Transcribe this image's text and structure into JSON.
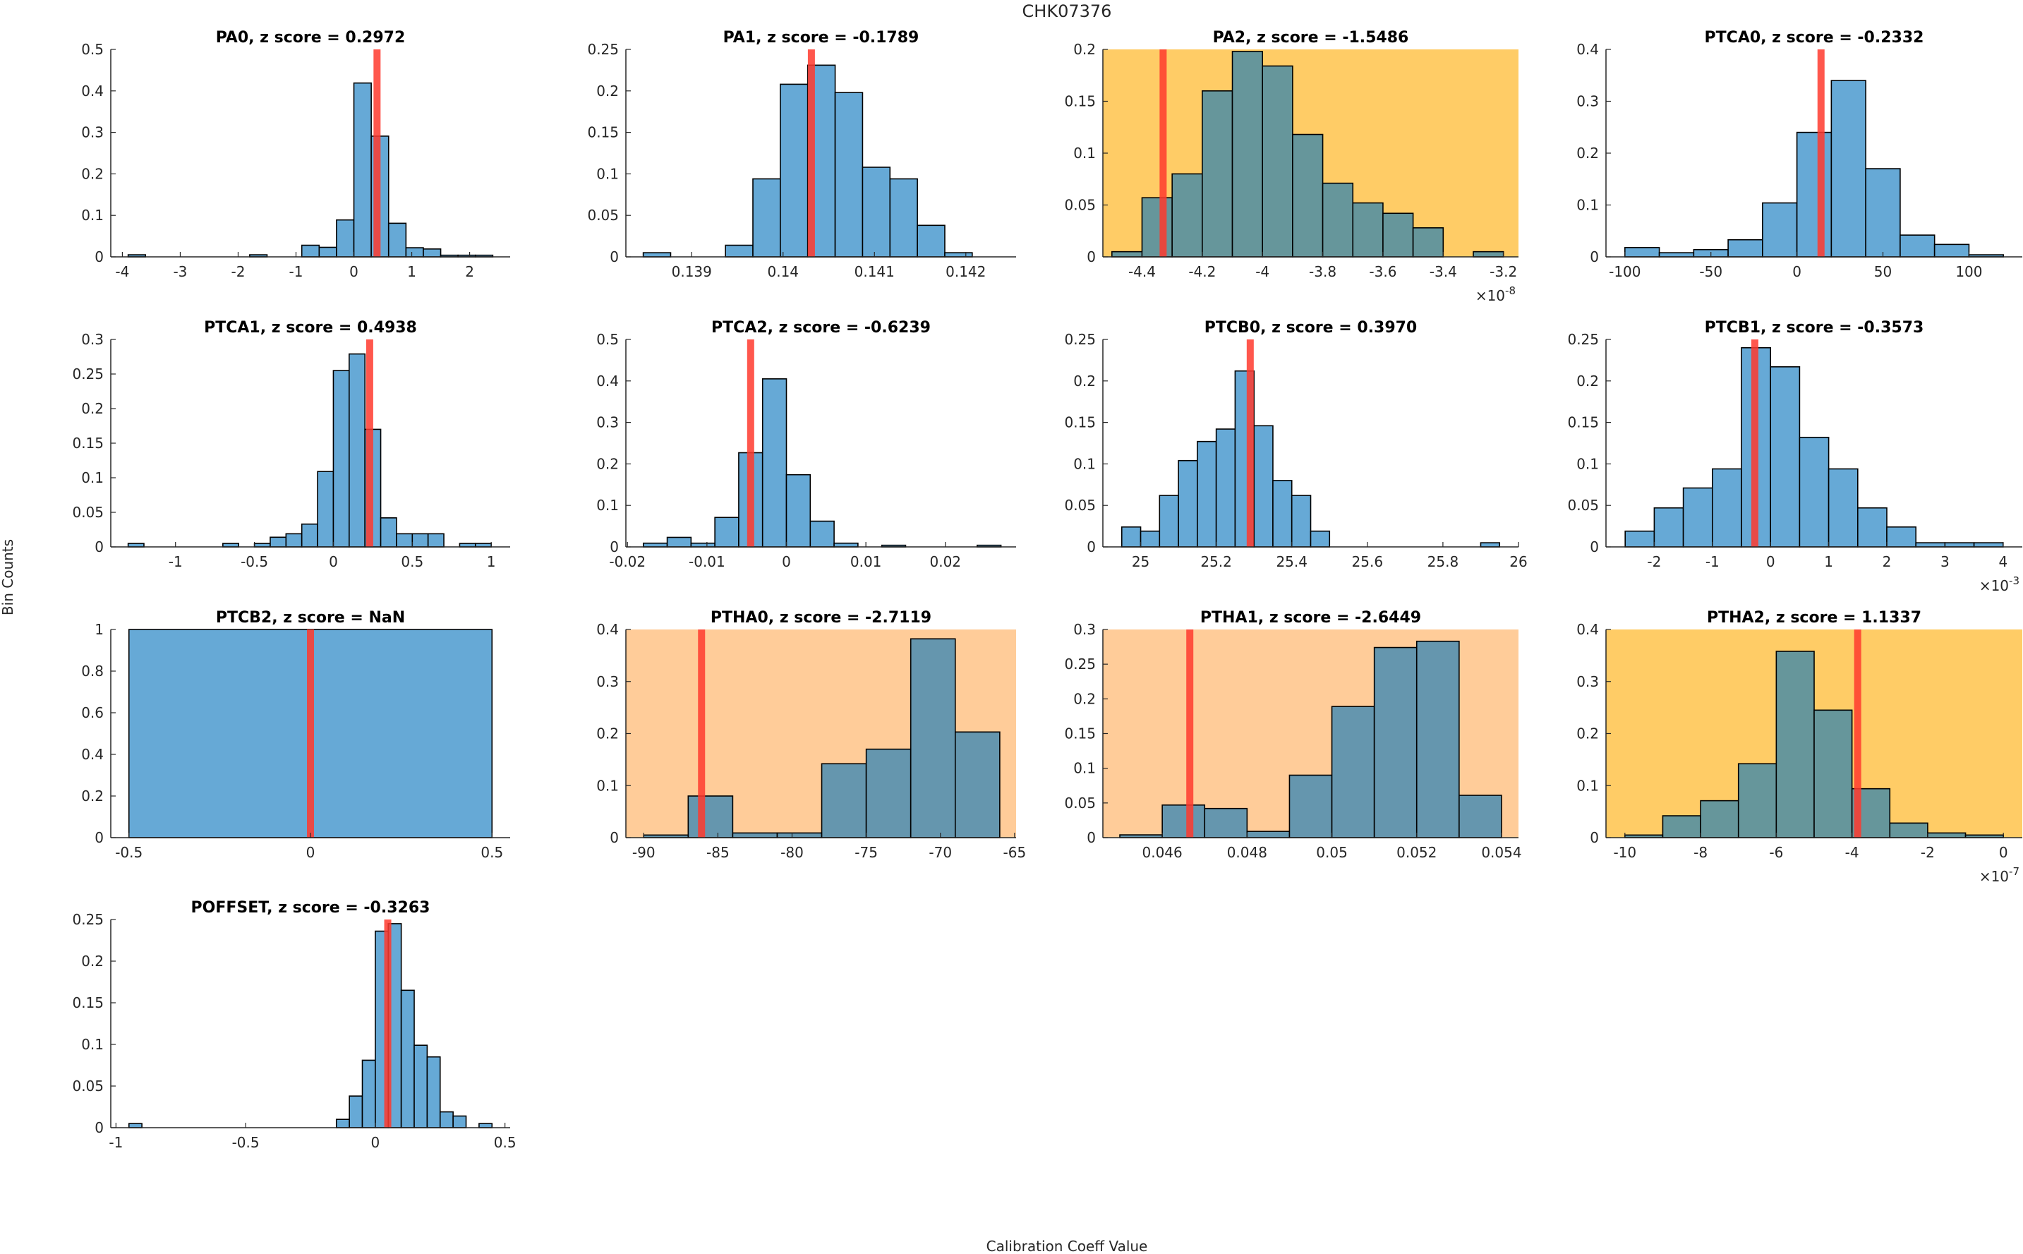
{
  "figure": {
    "suptitle": "CHK07376",
    "xlabel": "Calibration Coeff Value",
    "ylabel": "Bin Counts"
  },
  "colors": {
    "bar_default": "#66a9d6",
    "bar_on_highlight": "#66969b",
    "bar_on_orange": "#6596ae",
    "bar_edge": "#000000",
    "marker": "#ff3a2e",
    "bg_yellow": "#ffcc66",
    "bg_orange": "#ffcc99",
    "axis": "#262626"
  },
  "chart_data": [
    {
      "type": "bar",
      "name": "PA0",
      "title": "PA0, z score = 0.2972",
      "z_score": 0.2972,
      "background": "none",
      "xlim": [
        -4.2,
        2.7
      ],
      "ylim": [
        0,
        0.5
      ],
      "xticks": [
        -4,
        -3,
        -2,
        -1,
        0,
        1,
        2
      ],
      "xtick_labels": [
        "-4",
        "-3",
        "-2",
        "-1",
        "0",
        "1",
        "2"
      ],
      "yticks": [
        0,
        0.1,
        0.2,
        0.3,
        0.4,
        0.5
      ],
      "ytick_labels": [
        "0",
        "0.1",
        "0.2",
        "0.3",
        "0.4",
        "0.5"
      ],
      "x_multiplier": "",
      "bin_edges": [
        -3.9,
        -3.6,
        -3.3,
        -3.0,
        -2.7,
        -2.4,
        -2.1,
        -1.8,
        -1.5,
        -1.2,
        -0.9,
        -0.6,
        -0.3,
        0.0,
        0.3,
        0.6,
        0.9,
        1.2,
        1.5,
        1.8,
        2.1,
        2.4
      ],
      "values": [
        0.005,
        0,
        0,
        0,
        0,
        0,
        0,
        0.005,
        0,
        0,
        0.028,
        0.023,
        0.089,
        0.419,
        0.291,
        0.081,
        0.022,
        0.019,
        0.004,
        0.004,
        0.004
      ],
      "marker_x": 0.4
    },
    {
      "type": "bar",
      "name": "PA1",
      "title": "PA1, z score = -0.1789",
      "z_score": -0.1789,
      "background": "none",
      "xlim": [
        0.13828,
        0.14255
      ],
      "ylim": [
        0,
        0.25
      ],
      "xticks": [
        0.139,
        0.14,
        0.141,
        0.142
      ],
      "xtick_labels": [
        "0.139",
        "0.14",
        "0.141",
        "0.142"
      ],
      "yticks": [
        0,
        0.05,
        0.1,
        0.15,
        0.2,
        0.25
      ],
      "ytick_labels": [
        "0",
        "0.05",
        "0.1",
        "0.15",
        "0.2",
        "0.25"
      ],
      "x_multiplier": "",
      "bin_edges": [
        0.13847,
        0.13877,
        0.13907,
        0.13937,
        0.13967,
        0.13997,
        0.14027,
        0.14057,
        0.14087,
        0.14117,
        0.14147,
        0.14177,
        0.14207
      ],
      "values": [
        0.005,
        0,
        0,
        0.014,
        0.094,
        0.208,
        0.231,
        0.198,
        0.108,
        0.094,
        0.038,
        0.005
      ],
      "marker_x": 0.14031
    },
    {
      "type": "bar",
      "name": "PA2",
      "title": "PA2, z score = -1.5486",
      "z_score": -1.5486,
      "background": "yellow",
      "xlim": [
        -4.53,
        -3.15
      ],
      "ylim": [
        0,
        0.2
      ],
      "xticks": [
        -4.4,
        -4.2,
        -4.0,
        -3.8,
        -3.6,
        -3.4,
        -3.2
      ],
      "xtick_labels": [
        "-4.4",
        "-4.2",
        "-4",
        "-3.8",
        "-3.6",
        "-3.4",
        "-3.2"
      ],
      "yticks": [
        0,
        0.05,
        0.1,
        0.15,
        0.2
      ],
      "ytick_labels": [
        "0",
        "0.05",
        "0.1",
        "0.15",
        "0.2"
      ],
      "x_multiplier": "×10",
      "x_multiplier_exp": "-8",
      "bin_edges": [
        -4.5,
        -4.4,
        -4.3,
        -4.2,
        -4.1,
        -4.0,
        -3.9,
        -3.8,
        -3.7,
        -3.6,
        -3.5,
        -3.4,
        -3.3,
        -3.2
      ],
      "values": [
        0.005,
        0.057,
        0.08,
        0.16,
        0.198,
        0.184,
        0.118,
        0.071,
        0.052,
        0.042,
        0.028,
        0,
        0.005
      ],
      "marker_x": -4.33
    },
    {
      "type": "bar",
      "name": "PTCA0",
      "title": "PTCA0, z score = -0.2332",
      "z_score": -0.2332,
      "background": "none",
      "xlim": [
        -111,
        131
      ],
      "ylim": [
        0,
        0.4
      ],
      "xticks": [
        -100,
        -50,
        0,
        50,
        100
      ],
      "xtick_labels": [
        "-100",
        "-50",
        "0",
        "50",
        "100"
      ],
      "yticks": [
        0,
        0.1,
        0.2,
        0.3,
        0.4
      ],
      "ytick_labels": [
        "0",
        "0.1",
        "0.2",
        "0.3",
        "0.4"
      ],
      "x_multiplier": "",
      "bin_edges": [
        -100,
        -80,
        -60,
        -40,
        -20,
        0,
        20,
        40,
        60,
        80,
        100,
        120
      ],
      "values": [
        0.018,
        0.008,
        0.014,
        0.033,
        0.104,
        0.24,
        0.34,
        0.17,
        0.042,
        0.024,
        0.004
      ],
      "marker_x": 14
    },
    {
      "type": "bar",
      "name": "PTCA1",
      "title": "PTCA1, z score = 0.4938",
      "z_score": 0.4938,
      "background": "none",
      "xlim": [
        -1.41,
        1.12
      ],
      "ylim": [
        0,
        0.3
      ],
      "xticks": [
        -1,
        -0.5,
        0,
        0.5,
        1
      ],
      "xtick_labels": [
        "-1",
        "-0.5",
        "0",
        "0.5",
        "1"
      ],
      "yticks": [
        0,
        0.05,
        0.1,
        0.15,
        0.2,
        0.25,
        0.3
      ],
      "ytick_labels": [
        "0",
        "0.05",
        "0.1",
        "0.15",
        "0.2",
        "0.25",
        "0.3"
      ],
      "x_multiplier": "",
      "bin_edges": [
        -1.3,
        -1.2,
        -1.1,
        -1.0,
        -0.9,
        -0.8,
        -0.7,
        -0.6,
        -0.5,
        -0.4,
        -0.3,
        -0.2,
        -0.1,
        0.0,
        0.1,
        0.2,
        0.3,
        0.4,
        0.5,
        0.6,
        0.7,
        0.8,
        0.9,
        1.0
      ],
      "values": [
        0.005,
        0,
        0,
        0,
        0,
        0,
        0.005,
        0,
        0.005,
        0.014,
        0.019,
        0.033,
        0.109,
        0.255,
        0.279,
        0.17,
        0.042,
        0.019,
        0.019,
        0.019,
        0,
        0.005,
        0.005
      ],
      "marker_x": 0.23
    },
    {
      "type": "bar",
      "name": "PTCA2",
      "title": "PTCA2, z score = -0.6239",
      "z_score": -0.6239,
      "background": "none",
      "xlim": [
        -0.0202,
        0.0289
      ],
      "ylim": [
        0,
        0.5
      ],
      "xticks": [
        -0.02,
        -0.01,
        0,
        0.01,
        0.02
      ],
      "xtick_labels": [
        "-0.02",
        "-0.01",
        "0",
        "0.01",
        "0.02"
      ],
      "yticks": [
        0,
        0.1,
        0.2,
        0.3,
        0.4,
        0.5
      ],
      "ytick_labels": [
        "0",
        "0.1",
        "0.2",
        "0.3",
        "0.4",
        "0.5"
      ],
      "x_multiplier": "",
      "bin_edges": [
        -0.018,
        -0.015,
        -0.012,
        -0.009,
        -0.006,
        -0.003,
        0.0,
        0.003,
        0.006,
        0.009,
        0.012,
        0.015,
        0.018,
        0.021,
        0.024,
        0.027
      ],
      "values": [
        0.009,
        0.023,
        0.009,
        0.071,
        0.227,
        0.405,
        0.174,
        0.062,
        0.009,
        0,
        0.004,
        0,
        0,
        0,
        0.004
      ],
      "marker_x": -0.0045
    },
    {
      "type": "bar",
      "name": "PTCB0",
      "title": "PTCB0, z score = 0.3970",
      "z_score": 0.397,
      "background": "none",
      "xlim": [
        24.9,
        26.0
      ],
      "ylim": [
        0,
        0.25
      ],
      "xticks": [
        25,
        25.2,
        25.4,
        25.6,
        25.8,
        26
      ],
      "xtick_labels": [
        "25",
        "25.2",
        "25.4",
        "25.6",
        "25.8",
        "26"
      ],
      "yticks": [
        0,
        0.05,
        0.1,
        0.15,
        0.2,
        0.25
      ],
      "ytick_labels": [
        "0",
        "0.05",
        "0.1",
        "0.15",
        "0.2",
        "0.25"
      ],
      "x_multiplier": "",
      "bin_edges": [
        24.95,
        25.0,
        25.05,
        25.1,
        25.15,
        25.2,
        25.25,
        25.3,
        25.35,
        25.4,
        25.45,
        25.5,
        25.55,
        25.6,
        25.65,
        25.7,
        25.75,
        25.8,
        25.85,
        25.9,
        25.95
      ],
      "values": [
        0.024,
        0.019,
        0.062,
        0.104,
        0.127,
        0.142,
        0.212,
        0.146,
        0.08,
        0.062,
        0.019,
        0,
        0,
        0,
        0,
        0,
        0,
        0,
        0,
        0.005
      ],
      "marker_x": 25.29
    },
    {
      "type": "bar",
      "name": "PTCB1",
      "title": "PTCB1, z score = -0.3573",
      "z_score": -0.3573,
      "background": "none",
      "xlim": [
        -2.83,
        4.33
      ],
      "ylim": [
        0,
        0.25
      ],
      "xticks": [
        -2,
        -1,
        0,
        1,
        2,
        3,
        4
      ],
      "xtick_labels": [
        "-2",
        "-1",
        "0",
        "1",
        "2",
        "3",
        "4"
      ],
      "yticks": [
        0,
        0.05,
        0.1,
        0.15,
        0.2,
        0.25
      ],
      "ytick_labels": [
        "0",
        "0.05",
        "0.1",
        "0.15",
        "0.2",
        "0.25"
      ],
      "x_multiplier": "×10",
      "x_multiplier_exp": "-3",
      "bin_edges": [
        -2.5,
        -2.0,
        -1.5,
        -1.0,
        -0.5,
        0.0,
        0.5,
        1.0,
        1.5,
        2.0,
        2.5,
        3.0,
        3.5,
        4.0
      ],
      "values": [
        0.019,
        0.047,
        0.071,
        0.094,
        0.24,
        0.217,
        0.132,
        0.094,
        0.047,
        0.024,
        0.005,
        0.005,
        0.005
      ],
      "marker_x": -0.27
    },
    {
      "type": "bar",
      "name": "PTCB2",
      "title": "PTCB2, z score = NaN",
      "z_score": "NaN",
      "background": "none",
      "xlim": [
        -0.55,
        0.55
      ],
      "ylim": [
        0,
        1
      ],
      "xticks": [
        -0.5,
        0,
        0.5
      ],
      "xtick_labels": [
        "-0.5",
        "0",
        "0.5"
      ],
      "yticks": [
        0,
        0.2,
        0.4,
        0.6,
        0.8,
        1
      ],
      "ytick_labels": [
        "0",
        "0.2",
        "0.4",
        "0.6",
        "0.8",
        "1"
      ],
      "x_multiplier": "",
      "bin_edges": [
        -0.5,
        0.5
      ],
      "values": [
        1.0
      ],
      "marker_x": 0
    },
    {
      "type": "bar",
      "name": "PTHA0",
      "title": "PTHA0, z score = -2.7119",
      "z_score": -2.7119,
      "background": "orange",
      "xlim": [
        -91.2,
        -64.9
      ],
      "ylim": [
        0,
        0.4
      ],
      "xticks": [
        -90,
        -85,
        -80,
        -75,
        -70,
        -65
      ],
      "xtick_labels": [
        "-90",
        "-85",
        "-80",
        "-75",
        "-70",
        "-65"
      ],
      "yticks": [
        0,
        0.1,
        0.2,
        0.3,
        0.4
      ],
      "ytick_labels": [
        "0",
        "0.1",
        "0.2",
        "0.3",
        "0.4"
      ],
      "x_multiplier": "",
      "bin_edges": [
        -90,
        -87,
        -84,
        -81,
        -78,
        -75,
        -72,
        -69,
        -66
      ],
      "values": [
        0.005,
        0.08,
        0.009,
        0.009,
        0.142,
        0.17,
        0.382,
        0.203
      ],
      "marker_x": -86.1
    },
    {
      "type": "bar",
      "name": "PTHA1",
      "title": "PTHA1, z score = -2.6449",
      "z_score": -2.6449,
      "background": "orange",
      "xlim": [
        0.0446,
        0.0544
      ],
      "ylim": [
        0,
        0.3
      ],
      "xticks": [
        0.046,
        0.048,
        0.05,
        0.052,
        0.054
      ],
      "xtick_labels": [
        "0.046",
        "0.048",
        "0.05",
        "0.052",
        "0.054"
      ],
      "yticks": [
        0,
        0.05,
        0.1,
        0.15,
        0.2,
        0.25,
        0.3
      ],
      "ytick_labels": [
        "0",
        "0.05",
        "0.1",
        "0.15",
        "0.2",
        "0.25",
        "0.3"
      ],
      "x_multiplier": "",
      "bin_edges": [
        0.045,
        0.046,
        0.047,
        0.048,
        0.049,
        0.05,
        0.051,
        0.052,
        0.053,
        0.054
      ],
      "values": [
        0.004,
        0.047,
        0.042,
        0.009,
        0.09,
        0.189,
        0.274,
        0.283,
        0.061
      ],
      "marker_x": 0.04665
    },
    {
      "type": "bar",
      "name": "PTHA2",
      "title": "PTHA2, z score = 1.1337",
      "z_score": 1.1337,
      "background": "yellow",
      "xlim": [
        -10.5,
        0.5
      ],
      "ylim": [
        0,
        0.4
      ],
      "xticks": [
        -10,
        -8,
        -6,
        -4,
        -2,
        0
      ],
      "xtick_labels": [
        "-10",
        "-8",
        "-6",
        "-4",
        "-2",
        "0"
      ],
      "yticks": [
        0,
        0.1,
        0.2,
        0.3,
        0.4
      ],
      "ytick_labels": [
        "0",
        "0.1",
        "0.2",
        "0.3",
        "0.4"
      ],
      "x_multiplier": "×10",
      "x_multiplier_exp": "-7",
      "bin_edges": [
        -10,
        -9,
        -8,
        -7,
        -6,
        -5,
        -4,
        -3,
        -2,
        -1,
        0
      ],
      "values": [
        0.005,
        0.042,
        0.071,
        0.142,
        0.358,
        0.245,
        0.094,
        0.028,
        0.009,
        0.005
      ],
      "marker_x": -3.85
    },
    {
      "type": "bar",
      "name": "POFFSET",
      "title": "POFFSET, z score = -0.3263",
      "z_score": -0.3263,
      "background": "none",
      "xlim": [
        -1.02,
        0.52
      ],
      "ylim": [
        0,
        0.25
      ],
      "xticks": [
        -1,
        -0.5,
        0,
        0.5
      ],
      "xtick_labels": [
        "-1",
        "-0.5",
        "0",
        "0.5"
      ],
      "yticks": [
        0,
        0.05,
        0.1,
        0.15,
        0.2,
        0.25
      ],
      "ytick_labels": [
        "0",
        "0.05",
        "0.1",
        "0.15",
        "0.2",
        "0.25"
      ],
      "x_multiplier": "",
      "bin_edges": [
        -0.95,
        -0.9,
        -0.85,
        -0.8,
        -0.75,
        -0.7,
        -0.65,
        -0.6,
        -0.55,
        -0.5,
        -0.45,
        -0.4,
        -0.35,
        -0.3,
        -0.25,
        -0.2,
        -0.15,
        -0.1,
        -0.05,
        0.0,
        0.05,
        0.1,
        0.15,
        0.2,
        0.25,
        0.3,
        0.35,
        0.4,
        0.45
      ],
      "values": [
        0.005,
        0,
        0,
        0,
        0,
        0,
        0,
        0,
        0,
        0,
        0,
        0,
        0,
        0,
        0,
        0,
        0.01,
        0.038,
        0.081,
        0.236,
        0.245,
        0.165,
        0.099,
        0.085,
        0.019,
        0.014,
        0,
        0.005
      ],
      "marker_x": 0.048
    }
  ]
}
